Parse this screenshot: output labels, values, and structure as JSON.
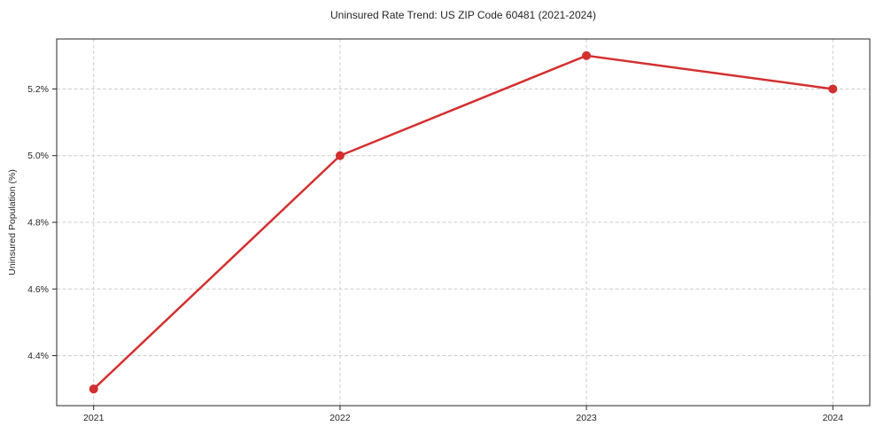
{
  "chart_data": {
    "type": "line",
    "title": "Uninsured Rate Trend: US ZIP Code 60481 (2021-2024)",
    "xlabel": "",
    "ylabel": "Uninsured Population (%)",
    "x": [
      2021,
      2022,
      2023,
      2024
    ],
    "series": [
      {
        "values": [
          4.3,
          5.0,
          5.3,
          5.2
        ]
      }
    ],
    "xticks": [
      2021,
      2022,
      2023,
      2024
    ],
    "xtick_labels": [
      "2021",
      "2022",
      "2023",
      "2024"
    ],
    "yticks": [
      4.4,
      4.6,
      4.8,
      5.0,
      5.2
    ],
    "ytick_labels": [
      "4.4%",
      "4.6%",
      "4.8%",
      "5.0%",
      "5.2%"
    ],
    "xlim": [
      2020.85,
      2024.15
    ],
    "ylim": [
      4.25,
      5.35
    ],
    "grid": true,
    "grid_style": "dashed",
    "legend_position": "none",
    "marker": "circle",
    "colors": {
      "line": "#d32f2f",
      "marker": "#d32f2f",
      "grid": "#cdcdcd",
      "axis": "#262626",
      "background": "#ffffff"
    }
  }
}
